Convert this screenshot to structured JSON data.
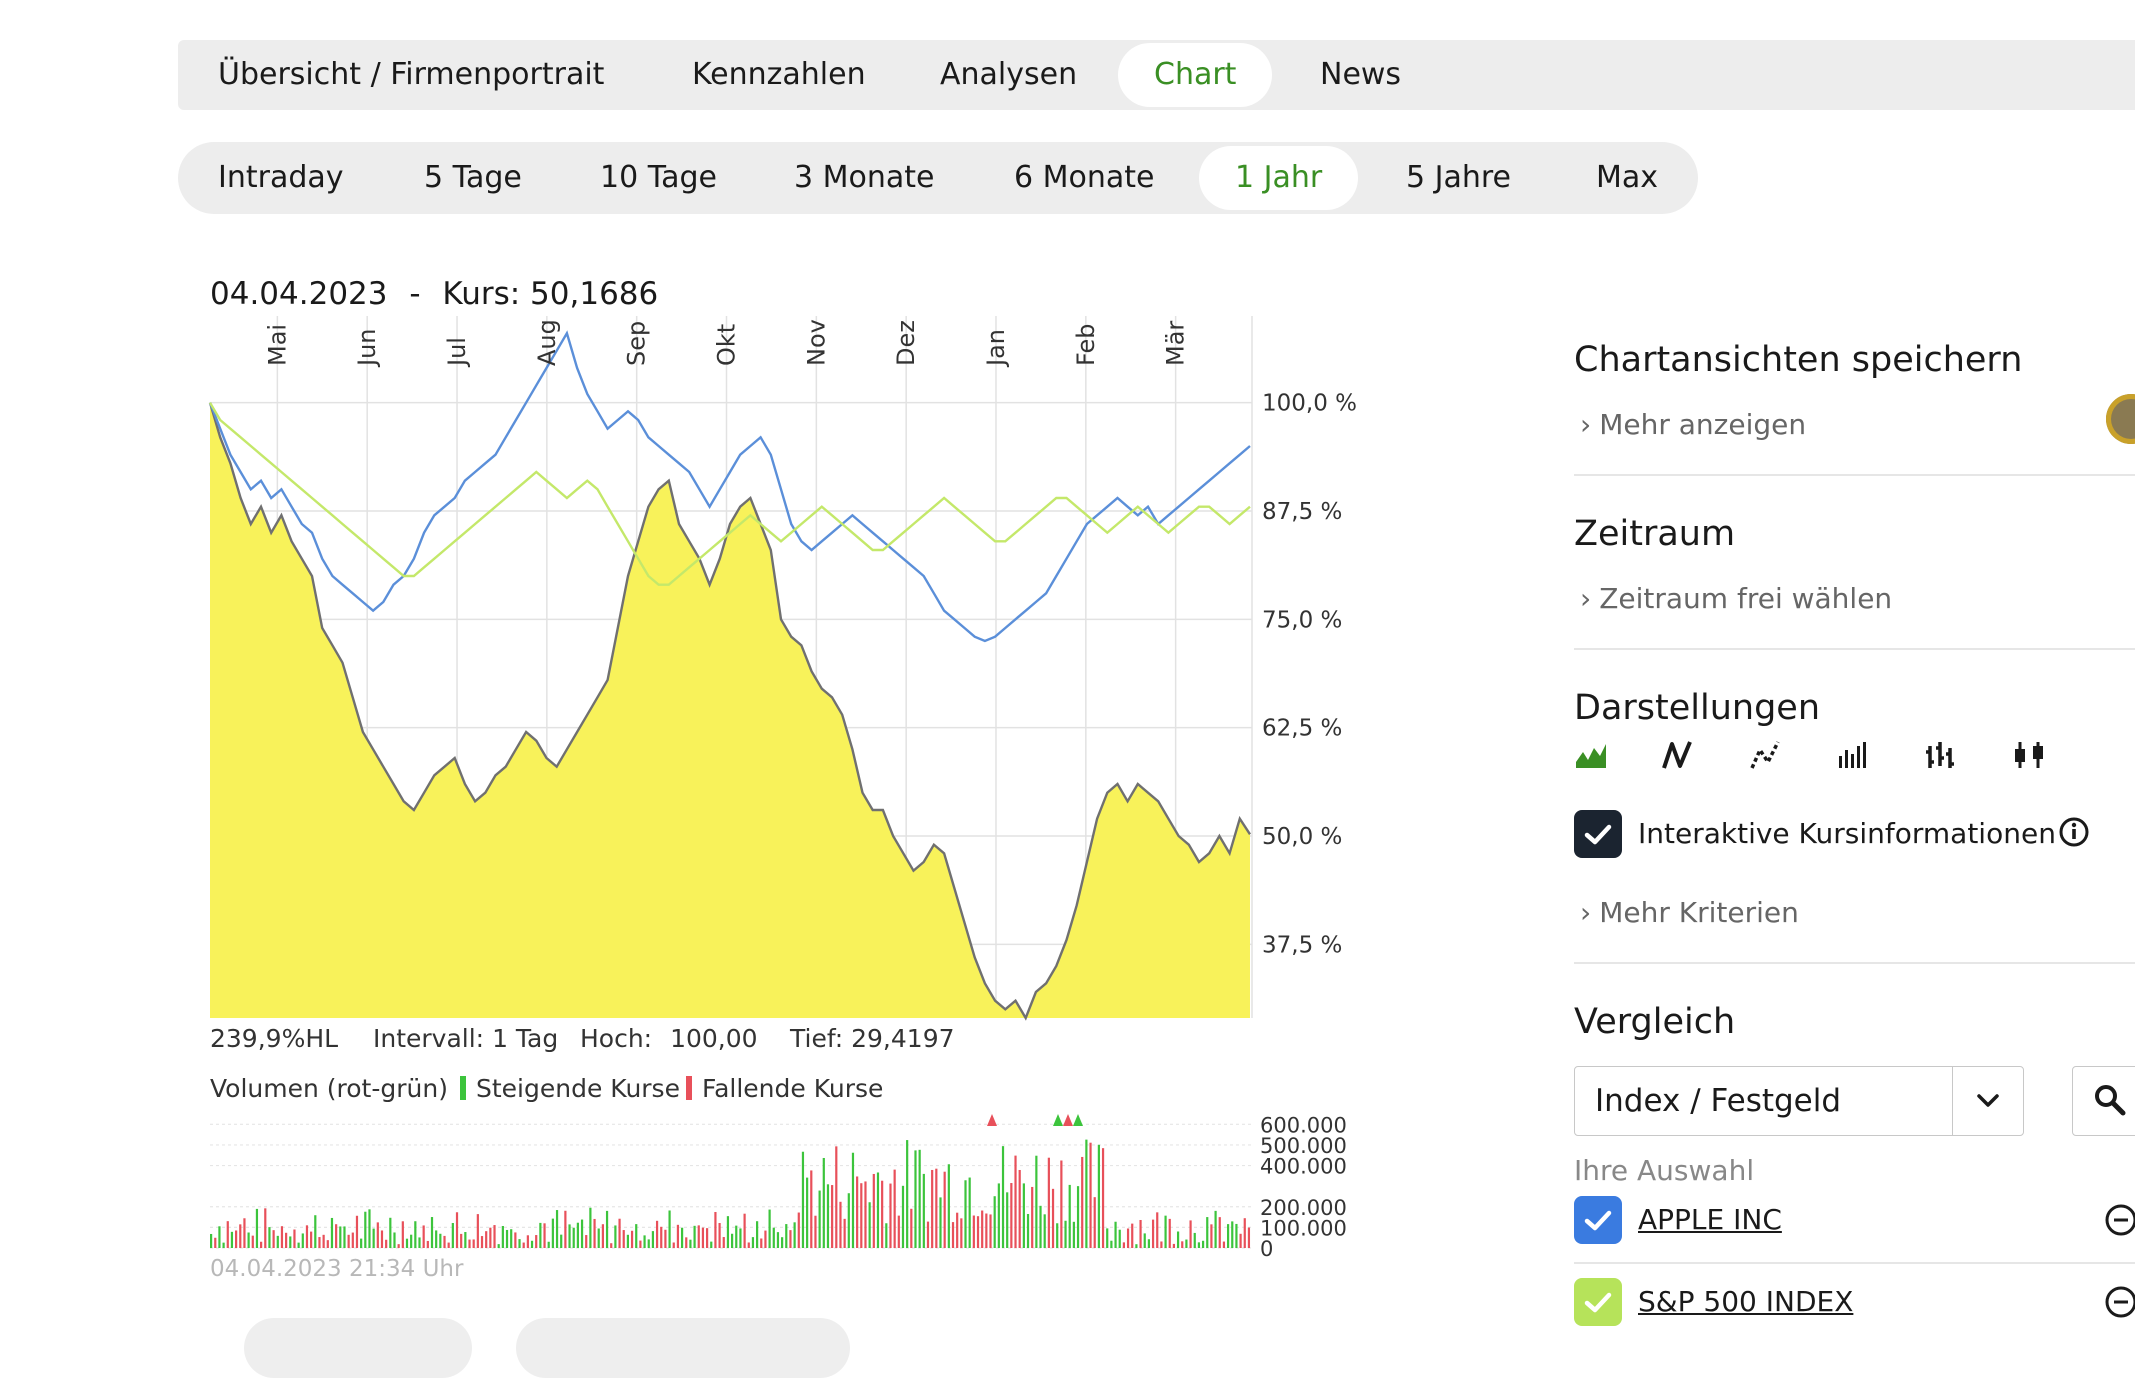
{
  "tabs_main": [
    {
      "label": "Übersicht / Firmenportrait",
      "active": false
    },
    {
      "label": "Kennzahlen",
      "active": false
    },
    {
      "label": "Analysen",
      "active": false
    },
    {
      "label": "Chart",
      "active": true
    },
    {
      "label": "News",
      "active": false
    }
  ],
  "tabs_range": [
    {
      "label": "Intraday",
      "active": false
    },
    {
      "label": "5 Tage",
      "active": false
    },
    {
      "label": "10 Tage",
      "active": false
    },
    {
      "label": "3 Monate",
      "active": false
    },
    {
      "label": "6 Monate",
      "active": false
    },
    {
      "label": "1 Jahr",
      "active": true
    },
    {
      "label": "5 Jahre",
      "active": false
    },
    {
      "label": "Max",
      "active": false
    }
  ],
  "chart_header": {
    "date": "04.04.2023",
    "separator": "-",
    "kurs_label": "Kurs:",
    "kurs_value": "50,1686"
  },
  "stats": {
    "hl": "239,9%HL",
    "interval_label": "Intervall:",
    "interval_value": "1 Tag",
    "hoch_label": "Hoch:",
    "hoch_value": "100,00",
    "tief_label": "Tief:",
    "tief_value": "29,4197"
  },
  "volume_legend": {
    "title": "Volumen (rot-grün)",
    "rising": "Steigende Kurse",
    "falling": "Fallende Kurse"
  },
  "timestamp": "04.04.2023 21:34 Uhr",
  "colors": {
    "accent_green": "#3a8f24",
    "area_fill": "#f8f25a",
    "area_line": "#707070",
    "apple_line": "#5b8fd9",
    "sp500_line": "#c4e86a",
    "vol_up": "#3cc43c",
    "vol_down": "#e8505a",
    "checkbox_dark": "#1b2430",
    "checkbox_blue": "#3a7be0",
    "checkbox_lime": "#b6e35a"
  },
  "chart_data": [
    {
      "type": "area",
      "months": [
        "Mai",
        "Jun",
        "Jul",
        "Aug",
        "Sep",
        "Okt",
        "Nov",
        "Dez",
        "Jan",
        "Feb",
        "Mär"
      ],
      "y_ticks": [
        "100,0 %",
        "87,5 %",
        "75,0 %",
        "62,5 %",
        "50,0 %",
        "37,5 %"
      ],
      "y_tick_values": [
        100,
        87.5,
        75,
        62.5,
        50,
        37.5
      ],
      "ylim": [
        29,
        110
      ],
      "grid": true,
      "series": [
        {
          "role": "main-area",
          "values": [
            100,
            96,
            93,
            89,
            86,
            88,
            85,
            87,
            84,
            82,
            80,
            74,
            72,
            70,
            66,
            62,
            60,
            58,
            56,
            54,
            53,
            55,
            57,
            58,
            59,
            56,
            54,
            55,
            57,
            58,
            60,
            62,
            61,
            59,
            58,
            60,
            62,
            64,
            66,
            68,
            74,
            80,
            84,
            88,
            90,
            91,
            86,
            84,
            82,
            79,
            82,
            86,
            88,
            89,
            86,
            83,
            75,
            73,
            72,
            69,
            67,
            66,
            64,
            60,
            55,
            53,
            53,
            50,
            48,
            46,
            47,
            49,
            48,
            44,
            40,
            36,
            33,
            31,
            30,
            31,
            29,
            32,
            33,
            35,
            38,
            42,
            47,
            52,
            55,
            56,
            54,
            56,
            55,
            54,
            52,
            50,
            49,
            47,
            48,
            50,
            48,
            52,
            50.2
          ]
        },
        {
          "role": "apple-line",
          "values": [
            100,
            97,
            94,
            92,
            90,
            91,
            89,
            90,
            88,
            86,
            85,
            82,
            80,
            79,
            78,
            77,
            76,
            77,
            79,
            80,
            82,
            85,
            87,
            88,
            89,
            91,
            92,
            93,
            94,
            96,
            98,
            100,
            102,
            104,
            106,
            108,
            104,
            101,
            99,
            97,
            98,
            99,
            98,
            96,
            95,
            94,
            93,
            92,
            90,
            88,
            90,
            92,
            94,
            95,
            96,
            94,
            90,
            86,
            84,
            83,
            84,
            85,
            86,
            87,
            86,
            85,
            84,
            83,
            82,
            81,
            80,
            78,
            76,
            75,
            74,
            73,
            72.5,
            73,
            74,
            75,
            76,
            77,
            78,
            80,
            82,
            84,
            86,
            87,
            88,
            89,
            88,
            87,
            88,
            86,
            87,
            88,
            89,
            90,
            91,
            92,
            93,
            94,
            95
          ]
        },
        {
          "role": "sp500-line",
          "values": [
            100,
            98,
            97,
            96,
            95,
            94,
            93,
            92,
            91,
            90,
            89,
            88,
            87,
            86,
            85,
            84,
            83,
            82,
            81,
            80,
            80,
            81,
            82,
            83,
            84,
            85,
            86,
            87,
            88,
            89,
            90,
            91,
            92,
            91,
            90,
            89,
            90,
            91,
            90,
            88,
            86,
            84,
            82,
            80,
            79,
            79,
            80,
            81,
            82,
            83,
            84,
            85,
            86,
            87,
            86,
            85,
            84,
            85,
            86,
            87,
            88,
            87,
            86,
            85,
            84,
            83,
            83,
            84,
            85,
            86,
            87,
            88,
            89,
            88,
            87,
            86,
            85,
            84,
            84,
            85,
            86,
            87,
            88,
            89,
            89,
            88,
            87,
            86,
            85,
            86,
            87,
            88,
            87,
            86,
            85,
            86,
            87,
            88,
            88,
            87,
            86,
            87,
            88
          ]
        }
      ]
    },
    {
      "type": "bar",
      "title": "Volumen (rot-grün)",
      "y_ticks": [
        "600.000",
        "500.000",
        "400.000",
        "200.000",
        "100.000",
        "0"
      ],
      "y_tick_values": [
        600000,
        500000,
        400000,
        200000,
        100000,
        0
      ],
      "ylim": [
        0,
        650000
      ],
      "legend_position": "top-left"
    }
  ],
  "sidebar": {
    "save_title": "Chartansichten speichern",
    "save_more": "Mehr anzeigen",
    "zeitraum_title": "Zeitraum",
    "zeitraum_link": "Zeitraum frei wählen",
    "darstellungen_title": "Darstellungen",
    "display_icons": [
      "area-chart-icon",
      "line-chart-icon",
      "dotted-line-chart-icon",
      "bar-chart-icon",
      "ohlc-chart-icon",
      "candlestick-chart-icon"
    ],
    "interactive_label": "Interaktive Kursinformationen",
    "interactive_checked": true,
    "more_criteria": "Mehr Kriterien",
    "vergleich_title": "Vergleich",
    "select_value": "Index / Festgeld",
    "ihre_auswahl": "Ihre Auswahl",
    "compare_items": [
      {
        "label": "APPLE INC",
        "checked": true
      },
      {
        "label": "S&P 500 INDEX",
        "checked": true
      }
    ]
  }
}
